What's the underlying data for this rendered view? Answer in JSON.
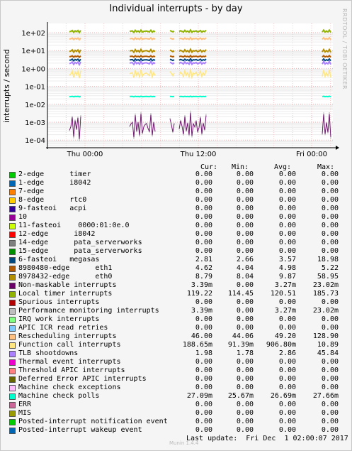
{
  "title": "Individual interrupts - by day",
  "side_label": "RRDTOOL / TOBI OETIKER",
  "ylabel": "interrupts / second",
  "columns": [
    "Cur:",
    "Min:",
    "Avg:",
    "Max:"
  ],
  "last_update": "Last update:  Fri Dec  1 02:00:07 2017",
  "footer": "Munin 1.4.4",
  "chart_data": {
    "type": "line",
    "title": "Individual interrupts - by day",
    "ylabel": "interrupts / second",
    "yscale": "log",
    "ylim": [
      5e-05,
      200
    ],
    "y_ticks": [
      "1e+02",
      "1e+01",
      "1e+00",
      "1e-01",
      "1e-02",
      "1e-03",
      "1e-04"
    ],
    "x_ticks": [
      "Thu 00:00",
      "Thu 12:00",
      "Fri 00:00"
    ],
    "grid": true,
    "series": [
      {
        "name": "2-edge      timer",
        "color": "#00cc00",
        "cur": "0.00",
        "min": "0.00",
        "avg": "0.00",
        "max": "0.00"
      },
      {
        "name": "1-edge      i8042",
        "color": "#0066b3",
        "cur": "0.00",
        "min": "0.00",
        "avg": "0.00",
        "max": "0.00"
      },
      {
        "name": "7-edge",
        "color": "#ff8000",
        "cur": "0.00",
        "min": "0.00",
        "avg": "0.00",
        "max": "0.00"
      },
      {
        "name": "8-edge      rtc0",
        "color": "#ffcc00",
        "cur": "0.00",
        "min": "0.00",
        "avg": "0.00",
        "max": "0.00"
      },
      {
        "name": "9-fasteoi   acpi",
        "color": "#330099",
        "cur": "0.00",
        "min": "0.00",
        "avg": "0.00",
        "max": "0.00"
      },
      {
        "name": "10",
        "color": "#990099",
        "cur": "0.00",
        "min": "0.00",
        "avg": "0.00",
        "max": "0.00"
      },
      {
        "name": "11-fasteoi    0000:01:0e.0",
        "color": "#ccff00",
        "cur": "0.00",
        "min": "0.00",
        "avg": "0.00",
        "max": "0.00"
      },
      {
        "name": "12-edge      i8042",
        "color": "#ff0000",
        "cur": "0.00",
        "min": "0.00",
        "avg": "0.00",
        "max": "0.00"
      },
      {
        "name": "14-edge      pata_serverworks",
        "color": "#808080",
        "cur": "0.00",
        "min": "0.00",
        "avg": "0.00",
        "max": "0.00"
      },
      {
        "name": "15-edge      pata_serverworks",
        "color": "#008f00",
        "cur": "0.00",
        "min": "0.00",
        "avg": "0.00",
        "max": "0.00"
      },
      {
        "name": "6-fasteoi   megasas",
        "color": "#00487d",
        "cur": "2.81",
        "min": "2.66",
        "avg": "3.57",
        "max": "18.98"
      },
      {
        "name": "8980480-edge      eth1",
        "color": "#b35a00",
        "cur": "4.62",
        "min": "4.04",
        "avg": "4.98",
        "max": "5.22"
      },
      {
        "name": "8978432-edge      eth0",
        "color": "#b38f00",
        "cur": "8.79",
        "min": "8.04",
        "avg": "9.87",
        "max": "58.95"
      },
      {
        "name": "Non-maskable interrupts",
        "color": "#6b006b",
        "cur": "3.39m",
        "min": "0.00",
        "avg": "3.27m",
        "max": "23.02m"
      },
      {
        "name": "Local timer interrupts",
        "color": "#8fb300",
        "cur": "119.22",
        "min": "114.45",
        "avg": "120.51",
        "max": "185.73"
      },
      {
        "name": "Spurious interrupts",
        "color": "#b30000",
        "cur": "0.00",
        "min": "0.00",
        "avg": "0.00",
        "max": "0.00"
      },
      {
        "name": "Performance monitoring interrupts",
        "color": "#bebebe",
        "cur": "3.39m",
        "min": "0.00",
        "avg": "3.27m",
        "max": "23.02m"
      },
      {
        "name": "IRQ work interrupts",
        "color": "#80ff80",
        "cur": "0.00",
        "min": "0.00",
        "avg": "0.00",
        "max": "0.00"
      },
      {
        "name": "APIC ICR read retries",
        "color": "#80c9ff",
        "cur": "0.00",
        "min": "0.00",
        "avg": "0.00",
        "max": "0.00"
      },
      {
        "name": "Rescheduling interrupts",
        "color": "#ffc080",
        "cur": "46.00",
        "min": "44.06",
        "avg": "49.20",
        "max": "128.90"
      },
      {
        "name": "Function call interrupts",
        "color": "#ffe680",
        "cur": "188.65m",
        "min": "91.39m",
        "avg": "906.80m",
        "max": "10.89"
      },
      {
        "name": "TLB shootdowns",
        "color": "#aa80ff",
        "cur": "1.98",
        "min": "1.78",
        "avg": "2.86",
        "max": "45.84"
      },
      {
        "name": "Thermal event interrupts",
        "color": "#ee00cc",
        "cur": "0.00",
        "min": "0.00",
        "avg": "0.00",
        "max": "0.00"
      },
      {
        "name": "Threshold APIC interrupts",
        "color": "#ff8080",
        "cur": "0.00",
        "min": "0.00",
        "avg": "0.00",
        "max": "0.00"
      },
      {
        "name": "Deferred Error APIC interrupts",
        "color": "#666600",
        "cur": "0.00",
        "min": "0.00",
        "avg": "0.00",
        "max": "0.00"
      },
      {
        "name": "Machine check exceptions",
        "color": "#ffbfff",
        "cur": "0.00",
        "min": "0.00",
        "avg": "0.00",
        "max": "0.00"
      },
      {
        "name": "Machine check polls",
        "color": "#00ffcc",
        "cur": "27.09m",
        "min": "25.67m",
        "avg": "26.69m",
        "max": "27.66m"
      },
      {
        "name": "ERR",
        "color": "#cc6699",
        "cur": "0.00",
        "min": "0.00",
        "avg": "0.00",
        "max": "0.00"
      },
      {
        "name": "MIS",
        "color": "#999900",
        "cur": "0.00",
        "min": "0.00",
        "avg": "0.00",
        "max": "0.00"
      },
      {
        "name": "Posted-interrupt notification event",
        "color": "#00cc00",
        "cur": "0.00",
        "min": "0.00",
        "avg": "0.00",
        "max": "0.00"
      },
      {
        "name": "Posted-interrupt wakeup event",
        "color": "#0066b3",
        "cur": "0.00",
        "min": "0.00",
        "avg": "0.00",
        "max": "0.00"
      }
    ]
  }
}
